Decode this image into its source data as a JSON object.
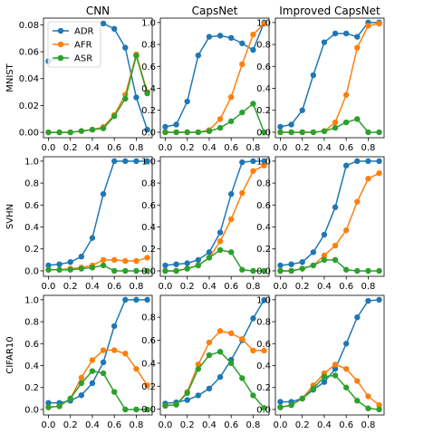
{
  "chart_data": {
    "type": "line",
    "column_titles": [
      "CNN",
      "CapsNet",
      "Improved CapsNet"
    ],
    "row_labels": [
      "MNIST",
      "SVHN",
      "CIFAR10"
    ],
    "x": [
      0.0,
      0.1,
      0.2,
      0.3,
      0.4,
      0.5,
      0.6,
      0.7,
      0.8,
      0.9
    ],
    "x_ticks": [
      "0.0",
      "0.2",
      "0.4",
      "0.6",
      "0.8"
    ],
    "xlim": [
      -0.045,
      0.945
    ],
    "legend": {
      "placement": "top-left",
      "panel": 0,
      "entries": [
        "ADR",
        "AFR",
        "ASR"
      ]
    },
    "series_colors": {
      "ADR": "#1f77b4",
      "AFR": "#ff7f0e",
      "ASR": "#2ca02c"
    },
    "panels": [
      {
        "row": 0,
        "col": 0,
        "ylim": [
          -0.004,
          0.085
        ],
        "y_ticks": [
          "0.00",
          "0.02",
          "0.04",
          "0.06",
          "0.08"
        ],
        "y_tick_values": [
          0,
          0.02,
          0.04,
          0.06,
          0.08
        ],
        "series": [
          {
            "name": "ADR",
            "values": [
              0.053,
              0.055,
              null,
              null,
              null,
              0.081,
              0.077,
              0.063,
              0.026,
              0.002
            ]
          },
          {
            "name": "AFR",
            "values": [
              0,
              0,
              0,
              0.001,
              0.002,
              0.004,
              0.013,
              0.028,
              0.058,
              0.03
            ]
          },
          {
            "name": "ASR",
            "values": [
              0,
              0,
              0,
              0.001,
              0.002,
              0.003,
              0.012,
              0.025,
              0.057,
              0.029
            ]
          }
        ]
      },
      {
        "row": 0,
        "col": 1,
        "ylim": [
          -0.05,
          1.04
        ],
        "y_ticks": [
          "0.0",
          "0.2",
          "0.4",
          "0.6",
          "0.8",
          "1.0"
        ],
        "y_tick_values": [
          0,
          0.2,
          0.4,
          0.6,
          0.8,
          1.0
        ],
        "series": [
          {
            "name": "ADR",
            "values": [
              0.05,
              0.07,
              0.28,
              0.7,
              0.87,
              0.88,
              0.86,
              0.81,
              0.75,
              1.0
            ]
          },
          {
            "name": "AFR",
            "values": [
              0,
              0,
              0,
              0,
              0.02,
              0.12,
              0.32,
              0.62,
              0.89,
              0.99
            ]
          },
          {
            "name": "ASR",
            "values": [
              0,
              0,
              0,
              0,
              0.01,
              0.04,
              0.1,
              0.18,
              0.26,
              0.0
            ]
          }
        ]
      },
      {
        "row": 0,
        "col": 2,
        "ylim": [
          -0.05,
          1.04
        ],
        "y_ticks": [
          "0.0",
          "0.2",
          "0.4",
          "0.6",
          "0.8",
          "1.0"
        ],
        "y_tick_values": [
          0,
          0.2,
          0.4,
          0.6,
          0.8,
          1.0
        ],
        "series": [
          {
            "name": "ADR",
            "values": [
              0.05,
              0.07,
              0.2,
              0.52,
              0.82,
              0.9,
              0.9,
              0.87,
              1.0,
              1.0
            ]
          },
          {
            "name": "AFR",
            "values": [
              0,
              0,
              0,
              0,
              0.01,
              0.09,
              0.34,
              0.77,
              0.97,
              0.99
            ]
          },
          {
            "name": "ASR",
            "values": [
              0,
              0,
              0,
              0,
              0.01,
              0.04,
              0.09,
              0.12,
              0.0,
              0.0
            ]
          }
        ]
      },
      {
        "row": 1,
        "col": 0,
        "ylim": [
          -0.05,
          1.04
        ],
        "y_ticks": [
          "0.0",
          "0.2",
          "0.4",
          "0.6",
          "0.8",
          "1.0"
        ],
        "y_tick_values": [
          0,
          0.2,
          0.4,
          0.6,
          0.8,
          1.0
        ],
        "series": [
          {
            "name": "ADR",
            "values": [
              0.05,
              0.06,
              0.08,
              0.13,
              0.3,
              0.7,
              1.0,
              1.0,
              1.0,
              1.0
            ]
          },
          {
            "name": "AFR",
            "values": [
              0.01,
              0.01,
              0.02,
              0.03,
              0.05,
              0.1,
              0.1,
              0.09,
              0.09,
              0.12
            ]
          },
          {
            "name": "ASR",
            "values": [
              0.01,
              0.01,
              0.01,
              0.02,
              0.03,
              0.05,
              0.0,
              0.0,
              0.0,
              0.0
            ]
          }
        ]
      },
      {
        "row": 1,
        "col": 1,
        "ylim": [
          -0.05,
          1.04
        ],
        "y_ticks": [
          "0.0",
          "0.2",
          "0.4",
          "0.6",
          "0.8",
          "1.0"
        ],
        "y_tick_values": [
          0,
          0.2,
          0.4,
          0.6,
          0.8,
          1.0
        ],
        "series": [
          {
            "name": "ADR",
            "values": [
              0.05,
              0.06,
              0.07,
              0.1,
              0.17,
              0.35,
              0.7,
              0.99,
              1.0,
              1.0
            ]
          },
          {
            "name": "AFR",
            "values": [
              0,
              0,
              0.02,
              0.05,
              0.12,
              0.27,
              0.47,
              0.71,
              0.91,
              0.96
            ]
          },
          {
            "name": "ASR",
            "values": [
              0,
              0,
              0.02,
              0.05,
              0.12,
              0.19,
              0.17,
              0.01,
              0.0,
              0.0
            ]
          }
        ]
      },
      {
        "row": 1,
        "col": 2,
        "ylim": [
          -0.05,
          1.04
        ],
        "y_ticks": [
          "0.0",
          "0.2",
          "0.4",
          "0.6",
          "0.8",
          "1.0"
        ],
        "y_tick_values": [
          0,
          0.2,
          0.4,
          0.6,
          0.8,
          1.0
        ],
        "series": [
          {
            "name": "ADR",
            "values": [
              0.05,
              0.06,
              0.08,
              0.17,
              0.33,
              0.58,
              0.96,
              1.0,
              1.0,
              1.0
            ]
          },
          {
            "name": "AFR",
            "values": [
              0,
              0,
              0.02,
              0.05,
              0.14,
              0.23,
              0.37,
              0.63,
              0.84,
              0.89
            ]
          },
          {
            "name": "ASR",
            "values": [
              0,
              0,
              0.02,
              0.05,
              0.1,
              0.1,
              0.01,
              0.0,
              0.0,
              0.0
            ]
          }
        ]
      },
      {
        "row": 2,
        "col": 0,
        "ylim": [
          -0.05,
          1.04
        ],
        "y_ticks": [
          "0.0",
          "0.2",
          "0.4",
          "0.6",
          "0.8",
          "1.0"
        ],
        "y_tick_values": [
          0,
          0.2,
          0.4,
          0.6,
          0.8,
          1.0
        ],
        "series": [
          {
            "name": "ADR",
            "values": [
              0.06,
              0.06,
              0.08,
              0.13,
              0.24,
              0.43,
              0.76,
              1.0,
              1.0,
              1.0
            ]
          },
          {
            "name": "AFR",
            "values": [
              0.02,
              0.03,
              0.1,
              0.29,
              0.45,
              0.54,
              0.54,
              0.51,
              0.37,
              0.22
            ]
          },
          {
            "name": "ASR",
            "values": [
              0.02,
              0.03,
              0.1,
              0.24,
              0.35,
              0.33,
              0.16,
              0.0,
              0.0,
              0.0
            ]
          }
        ]
      },
      {
        "row": 2,
        "col": 1,
        "ylim": [
          -0.05,
          0.99
        ],
        "y_ticks": [
          "0.0",
          "0.2",
          "0.4",
          "0.6",
          "0.8"
        ],
        "y_tick_values": [
          0,
          0.2,
          0.4,
          0.6,
          0.8
        ],
        "series": [
          {
            "name": "ADR",
            "values": [
              0.05,
              0.06,
              0.08,
              0.12,
              0.18,
              0.28,
              0.43,
              0.6,
              0.79,
              0.95
            ]
          },
          {
            "name": "AFR",
            "values": [
              0.03,
              0.04,
              0.15,
              0.39,
              0.58,
              0.68,
              0.66,
              0.61,
              0.51,
              0.51
            ]
          },
          {
            "name": "ASR",
            "values": [
              0.03,
              0.04,
              0.14,
              0.35,
              0.47,
              0.5,
              0.4,
              0.27,
              0.12,
              0.01
            ]
          }
        ]
      },
      {
        "row": 2,
        "col": 2,
        "ylim": [
          -0.05,
          1.04
        ],
        "y_ticks": [
          "0.0",
          "0.2",
          "0.4",
          "0.6",
          "0.8",
          "1.0"
        ],
        "y_tick_values": [
          0,
          0.2,
          0.4,
          0.6,
          0.8,
          1.0
        ],
        "series": [
          {
            "name": "ADR",
            "values": [
              0.07,
              0.07,
              0.1,
              0.18,
              0.25,
              0.37,
              0.6,
              0.84,
              0.99,
              1.0
            ]
          },
          {
            "name": "AFR",
            "values": [
              0.02,
              0.04,
              0.1,
              0.22,
              0.33,
              0.41,
              0.37,
              0.26,
              0.12,
              0.04
            ]
          },
          {
            "name": "ASR",
            "values": [
              0.02,
              0.04,
              0.1,
              0.19,
              0.3,
              0.31,
              0.2,
              0.08,
              0.01,
              0.0
            ]
          }
        ]
      }
    ]
  }
}
